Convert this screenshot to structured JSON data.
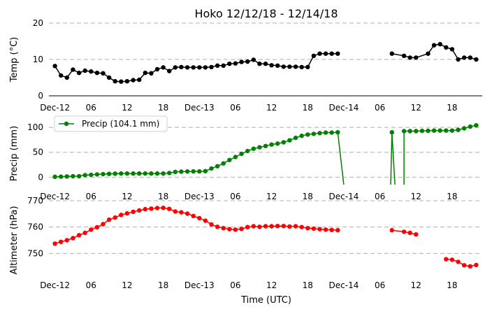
{
  "figure": {
    "title": "Hoko 12/12/18 - 12/14/18"
  },
  "x_axis": {
    "xlabel": "Time (UTC)",
    "range_hours": [
      -1,
      71
    ],
    "ticks": [
      {
        "hour": 0,
        "label": "Dec-12"
      },
      {
        "hour": 6,
        "label": "06"
      },
      {
        "hour": 12,
        "label": "12"
      },
      {
        "hour": 18,
        "label": "18"
      },
      {
        "hour": 24,
        "label": "Dec-13"
      },
      {
        "hour": 30,
        "label": "06"
      },
      {
        "hour": 36,
        "label": "12"
      },
      {
        "hour": 42,
        "label": "18"
      },
      {
        "hour": 48,
        "label": "Dec-14"
      },
      {
        "hour": 54,
        "label": "06"
      },
      {
        "hour": 60,
        "label": "12"
      },
      {
        "hour": 66,
        "label": "18"
      }
    ]
  },
  "chart_data": [
    {
      "type": "line",
      "ylabel": "Temp ($^\\circ$C)",
      "ylabel_display": "Temp (°C)",
      "ylim": [
        0,
        20
      ],
      "yticks": [
        0,
        10,
        20
      ],
      "grid": true,
      "color": "#000000",
      "series": [
        {
          "x": [
            0,
            1,
            2,
            3,
            4,
            5,
            6,
            7,
            8,
            9,
            10,
            11,
            12,
            13,
            14,
            15,
            16,
            17,
            18,
            19,
            20,
            21,
            22,
            23,
            24,
            25,
            26,
            27,
            28,
            29,
            30,
            31,
            32,
            33,
            34,
            35,
            36,
            37,
            38,
            39,
            40,
            41,
            42,
            43,
            44,
            45,
            46,
            47,
            48,
            null,
            56,
            58,
            59,
            60,
            62,
            63,
            64,
            65,
            66,
            67,
            68,
            69,
            70
          ],
          "y": [
            8.2,
            5.6,
            5.0,
            7.2,
            6.3,
            6.9,
            6.7,
            6.3,
            6.2,
            5.0,
            4.0,
            3.9,
            4.0,
            4.3,
            4.4,
            6.3,
            6.2,
            7.3,
            7.8,
            6.8,
            7.8,
            7.9,
            7.8,
            7.8,
            7.8,
            7.8,
            7.9,
            8.3,
            8.3,
            8.8,
            8.9,
            9.3,
            9.4,
            9.9,
            8.8,
            8.8,
            8.4,
            8.3,
            8.0,
            8.0,
            8.0,
            7.9,
            7.9,
            11.0,
            11.6,
            11.6,
            11.6,
            11.6,
            null,
            null,
            11.6,
            11.0,
            10.5,
            10.5,
            11.6,
            13.9,
            14.2,
            13.3,
            12.8,
            10.0,
            10.5,
            10.5,
            10.0
          ]
        }
      ]
    },
    {
      "type": "line",
      "ylabel": "Precip (mm)",
      "ylim": [
        -15,
        110
      ],
      "yticks": [
        0,
        50,
        100
      ],
      "grid": true,
      "color": "#008000",
      "legend": {
        "label": "Precip (104.1 mm)",
        "placement": "upper-left"
      },
      "series": [
        {
          "name": "Precip (104.1 mm)",
          "x": [
            0,
            1,
            2,
            3,
            4,
            5,
            6,
            7,
            8,
            9,
            10,
            11,
            12,
            13,
            14,
            15,
            16,
            17,
            18,
            19,
            20,
            21,
            22,
            23,
            24,
            25,
            26,
            27,
            28,
            29,
            30,
            31,
            32,
            33,
            34,
            35,
            36,
            37,
            38,
            39,
            40,
            41,
            42,
            43,
            44,
            45,
            46,
            47,
            48,
            null,
            55.8,
            56,
            56.5,
            null,
            58,
            58,
            59,
            60,
            61,
            62,
            63,
            64,
            65,
            66,
            67,
            68,
            69,
            70
          ],
          "y": [
            0.8,
            1.0,
            1.5,
            1.8,
            2.0,
            4.1,
            4.6,
            5.5,
            6.0,
            6.6,
            7.0,
            7.3,
            7.3,
            7.3,
            7.3,
            7.3,
            7.3,
            7.3,
            7.3,
            8.3,
            10.5,
            11.0,
            11.4,
            11.5,
            11.5,
            12.1,
            17.5,
            22.0,
            27.5,
            34.5,
            40.5,
            47.0,
            52.5,
            57.0,
            60.0,
            62.5,
            65.5,
            67.5,
            70.0,
            74.0,
            79.0,
            83.0,
            85.5,
            87.0,
            88.5,
            89.5,
            89.5,
            90.0,
            -15,
            null,
            -15,
            90.0,
            -15,
            null,
            -15,
            92.5,
            92.5,
            92.5,
            93.0,
            93.2,
            93.5,
            93.5,
            93.5,
            93.5,
            95.0,
            98.0,
            101.5,
            104.1
          ]
        }
      ]
    },
    {
      "type": "line",
      "ylabel": "Altimeter (hPa)",
      "ylim": [
        740,
        770
      ],
      "yticks": [
        750,
        760,
        770
      ],
      "grid": true,
      "color": "#ff0000",
      "series": [
        {
          "x": [
            0,
            1,
            2,
            3,
            4,
            5,
            6,
            7,
            8,
            9,
            10,
            11,
            12,
            13,
            14,
            15,
            16,
            17,
            18,
            19,
            20,
            21,
            22,
            23,
            24,
            25,
            26,
            27,
            28,
            29,
            30,
            31,
            32,
            33,
            34,
            35,
            36,
            37,
            38,
            39,
            40,
            41,
            42,
            43,
            44,
            45,
            46,
            47,
            null,
            56,
            58,
            59,
            60,
            null,
            65,
            66,
            67,
            68,
            69,
            70
          ],
          "y": [
            753.7,
            754.4,
            755.0,
            755.8,
            756.9,
            757.8,
            759.0,
            759.9,
            761.1,
            762.8,
            763.6,
            764.6,
            765.2,
            765.8,
            766.3,
            766.8,
            767.0,
            767.2,
            767.3,
            766.9,
            765.9,
            765.6,
            765.1,
            764.2,
            763.4,
            762.4,
            761.0,
            760.1,
            759.6,
            759.2,
            759.0,
            759.3,
            760.0,
            760.3,
            760.1,
            760.3,
            760.3,
            760.4,
            760.4,
            760.2,
            760.3,
            760.0,
            759.6,
            759.4,
            759.2,
            759.0,
            758.9,
            758.8,
            null,
            758.8,
            758.2,
            757.8,
            757.2,
            null,
            747.8,
            747.6,
            746.8,
            745.5,
            745.1,
            745.6
          ]
        }
      ]
    }
  ]
}
